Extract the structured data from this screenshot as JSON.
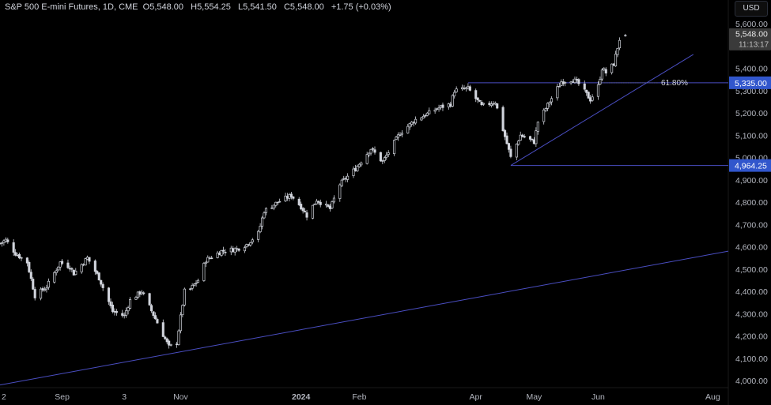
{
  "header": {
    "symbol": "S&P 500 E-mini Futures, 1D, CME",
    "open_label": "O",
    "open": "5,548.00",
    "high_label": "H",
    "high": "5,554.25",
    "low_label": "L",
    "low": "5,541.50",
    "close_label": "C",
    "close": "5,548.00",
    "change": "+1.75 (+0.03%)"
  },
  "currency": "USD",
  "price_tag": {
    "price": "5,548.00",
    "countdown": "11:13:17"
  },
  "level_labels": {
    "fib": "61.80%",
    "upper": "5,335.00",
    "lower": "4,964.25"
  },
  "colors": {
    "background": "#000000",
    "line": "#4a4ec2",
    "label_bg": "#3156cc",
    "candle": "#d1d4dc"
  },
  "chart_data": {
    "type": "candlestick",
    "ylim": [
      3970,
      5640
    ],
    "xlim": [
      "2023-07-31",
      "2024-08-09"
    ],
    "y_ticks": [
      "4,000.00",
      "4,100.00",
      "4,200.00",
      "4,300.00",
      "4,400.00",
      "4,500.00",
      "4,600.00",
      "4,700.00",
      "4,800.00",
      "4,900.00",
      "5,000.00",
      "5,100.00",
      "5,200.00",
      "5,300.00",
      "5,400.00",
      "5,500.00",
      "5,600.00"
    ],
    "x_ticks": [
      {
        "label": "2",
        "date": "2023-08-02",
        "bold": false
      },
      {
        "label": "Sep",
        "date": "2023-09-01",
        "bold": false
      },
      {
        "label": "3",
        "date": "2023-10-03",
        "bold": false
      },
      {
        "label": "Nov",
        "date": "2023-11-01",
        "bold": false
      },
      {
        "label": "2024",
        "date": "2024-01-02",
        "bold": true
      },
      {
        "label": "Feb",
        "date": "2024-02-01",
        "bold": false
      },
      {
        "label": "Apr",
        "date": "2024-04-01",
        "bold": false
      },
      {
        "label": "May",
        "date": "2024-05-01",
        "bold": false
      },
      {
        "label": "Jun",
        "date": "2024-06-03",
        "bold": false
      },
      {
        "label": "Aug",
        "date": "2024-08-01",
        "bold": false
      }
    ],
    "anchors": [
      [
        "2023-07-31",
        4615
      ],
      [
        "2023-08-03",
        4630
      ],
      [
        "2023-08-08",
        4570
      ],
      [
        "2023-08-14",
        4530
      ],
      [
        "2023-08-18",
        4380
      ],
      [
        "2023-08-24",
        4420
      ],
      [
        "2023-08-31",
        4530
      ],
      [
        "2023-09-05",
        4510
      ],
      [
        "2023-09-07",
        4480
      ],
      [
        "2023-09-14",
        4550
      ],
      [
        "2023-09-20",
        4460
      ],
      [
        "2023-09-27",
        4310
      ],
      [
        "2023-10-03",
        4290
      ],
      [
        "2023-10-06",
        4360
      ],
      [
        "2023-10-12",
        4400
      ],
      [
        "2023-10-20",
        4260
      ],
      [
        "2023-10-26",
        4150
      ],
      [
        "2023-10-30",
        4170
      ],
      [
        "2023-11-03",
        4400
      ],
      [
        "2023-11-06",
        4410
      ],
      [
        "2023-11-10",
        4450
      ],
      [
        "2023-11-14",
        4540
      ],
      [
        "2023-11-22",
        4580
      ],
      [
        "2023-11-30",
        4590
      ],
      [
        "2023-12-05",
        4610
      ],
      [
        "2023-12-11",
        4660
      ],
      [
        "2023-12-14",
        4760
      ],
      [
        "2023-12-21",
        4800
      ],
      [
        "2023-12-28",
        4830
      ],
      [
        "2024-01-02",
        4780
      ],
      [
        "2024-01-05",
        4740
      ],
      [
        "2024-01-10",
        4810
      ],
      [
        "2024-01-17",
        4770
      ],
      [
        "2024-01-22",
        4880
      ],
      [
        "2024-01-30",
        4950
      ],
      [
        "2024-02-07",
        5040
      ],
      [
        "2024-02-13",
        4980
      ],
      [
        "2024-02-22",
        5110
      ],
      [
        "2024-03-01",
        5170
      ],
      [
        "2024-03-08",
        5200
      ],
      [
        "2024-03-12",
        5220
      ],
      [
        "2024-03-19",
        5240
      ],
      [
        "2024-03-21",
        5300
      ],
      [
        "2024-03-28",
        5310
      ],
      [
        "2024-04-04",
        5230
      ],
      [
        "2024-04-11",
        5250
      ],
      [
        "2024-04-19",
        5000
      ],
      [
        "2024-04-24",
        5100
      ],
      [
        "2024-05-01",
        5070
      ],
      [
        "2024-05-03",
        5160
      ],
      [
        "2024-05-09",
        5250
      ],
      [
        "2024-05-15",
        5340
      ],
      [
        "2024-05-21",
        5350
      ],
      [
        "2024-05-24",
        5330
      ],
      [
        "2024-05-30",
        5260
      ],
      [
        "2024-06-03",
        5320
      ],
      [
        "2024-06-05",
        5400
      ],
      [
        "2024-06-07",
        5380
      ],
      [
        "2024-06-11",
        5420
      ],
      [
        "2024-06-14",
        5530
      ],
      [
        "2024-06-17",
        5548
      ]
    ],
    "levels": [
      {
        "name": "upper",
        "price": 5335.0,
        "from": "2024-03-28",
        "to": "2024-08-09",
        "label": "5,335.00",
        "fib": "61.80%"
      },
      {
        "name": "lower",
        "price": 4964.25,
        "from": "2024-04-19",
        "to": "2024-08-09",
        "label": "4,964.25"
      }
    ],
    "trendlines": [
      {
        "from": [
          "2023-07-31",
          3980
        ],
        "to": [
          "2024-08-09",
          4580
        ]
      },
      {
        "from": [
          "2024-04-19",
          4964.25
        ],
        "to": [
          "2024-07-22",
          5462
        ]
      }
    ]
  }
}
